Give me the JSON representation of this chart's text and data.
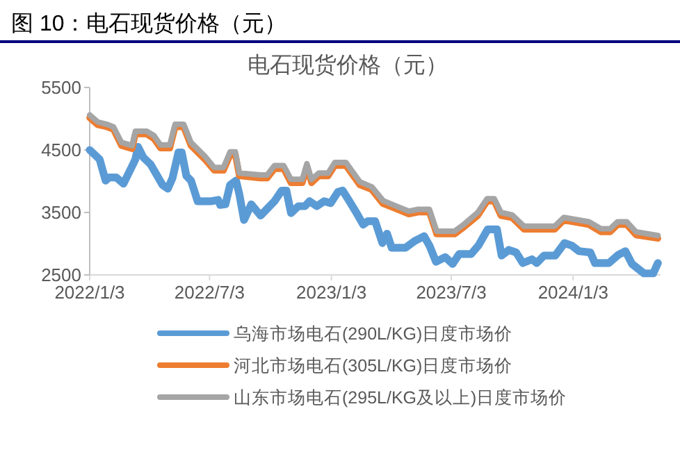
{
  "chart_data": {
    "type": "line",
    "title": "图 10：电石现货价格（元）",
    "subtitle": "电石现货价格（元）",
    "xlim": [
      "2022-01-03",
      "2024-05-14"
    ],
    "xticks": [
      {
        "value": "2022-01-03",
        "label": "2022/1/3"
      },
      {
        "value": "2022-07-03",
        "label": "2022/7/3"
      },
      {
        "value": "2023-01-03",
        "label": "2023/1/3"
      },
      {
        "value": "2023-07-03",
        "label": "2023/7/3"
      },
      {
        "value": "2024-01-03",
        "label": "2024/1/3"
      }
    ],
    "ylim": [
      2500,
      5500
    ],
    "yticks": [
      2500,
      3500,
      4500,
      5500
    ],
    "grid": false,
    "legend": "bottom",
    "marker": "none",
    "line_style": "solid",
    "series": [
      {
        "name": "乌海市场电石(290L/KG)日度市场价",
        "color": "#5b9bd5",
        "x": [
          "2022-01-03",
          "2022-01-18",
          "2022-01-27",
          "2022-02-01",
          "2022-02-12",
          "2022-02-23",
          "2022-03-08",
          "2022-03-13",
          "2022-03-17",
          "2022-03-25",
          "2022-04-05",
          "2022-04-23",
          "2022-05-01",
          "2022-05-08",
          "2022-05-17",
          "2022-05-22",
          "2022-05-29",
          "2022-06-05",
          "2022-06-15",
          "2022-07-06",
          "2022-07-16",
          "2022-07-19",
          "2022-07-27",
          "2022-08-03",
          "2022-08-12",
          "2022-08-17",
          "2022-08-24",
          "2022-09-04",
          "2022-09-18",
          "2022-10-09",
          "2022-10-20",
          "2022-10-27",
          "2022-11-03",
          "2022-11-14",
          "2022-11-24",
          "2022-12-01",
          "2022-12-12",
          "2022-12-23",
          "2023-01-02",
          "2023-01-13",
          "2023-01-20",
          "2023-01-29",
          "2023-02-10",
          "2023-02-20",
          "2023-02-27",
          "2023-03-10",
          "2023-03-21",
          "2023-03-28",
          "2023-04-04",
          "2023-04-25",
          "2023-05-09",
          "2023-05-23",
          "2023-05-31",
          "2023-06-10",
          "2023-06-24",
          "2023-07-05",
          "2023-07-15",
          "2023-08-02",
          "2023-08-13",
          "2023-08-27",
          "2023-09-10",
          "2023-09-17",
          "2023-09-28",
          "2023-10-09",
          "2023-10-19",
          "2023-11-02",
          "2023-11-09",
          "2023-11-20",
          "2023-12-07",
          "2023-12-21",
          "2024-01-01",
          "2024-01-12",
          "2024-01-29",
          "2024-02-05",
          "2024-02-26",
          "2024-03-11",
          "2024-03-22",
          "2024-04-01",
          "2024-04-19",
          "2024-05-03",
          "2024-05-10"
        ],
        "values": [
          4500,
          4350,
          4010,
          4060,
          4060,
          3960,
          4240,
          4350,
          4550,
          4380,
          4270,
          3940,
          3880,
          4050,
          4460,
          4460,
          4085,
          4010,
          3680,
          3680,
          3700,
          3620,
          3630,
          3940,
          4010,
          3790,
          3380,
          3630,
          3450,
          3680,
          3850,
          3850,
          3490,
          3600,
          3600,
          3680,
          3600,
          3680,
          3650,
          3830,
          3850,
          3700,
          3490,
          3305,
          3360,
          3360,
          3010,
          3160,
          2935,
          2935,
          3045,
          3120,
          2970,
          2710,
          2785,
          2675,
          2835,
          2835,
          2970,
          3230,
          3230,
          2810,
          2900,
          2860,
          2690,
          2750,
          2690,
          2810,
          2810,
          3010,
          2970,
          2880,
          2860,
          2690,
          2690,
          2820,
          2880,
          2675,
          2525,
          2525,
          2690
        ]
      },
      {
        "name": "河北市场电石(305L/KG)日度市场价",
        "color": "#ed7d31",
        "x": [
          "2022-01-03",
          "2022-01-15",
          "2022-01-29",
          "2022-02-08",
          "2022-02-20",
          "2022-03-08",
          "2022-03-13",
          "2022-03-30",
          "2022-04-10",
          "2022-04-20",
          "2022-05-04",
          "2022-05-12",
          "2022-05-25",
          "2022-06-05",
          "2022-06-26",
          "2022-07-10",
          "2022-07-24",
          "2022-08-03",
          "2022-08-11",
          "2022-08-17",
          "2022-09-18",
          "2022-09-28",
          "2022-10-09",
          "2022-10-23",
          "2022-11-03",
          "2022-11-20",
          "2022-11-27",
          "2022-12-04",
          "2022-12-15",
          "2022-12-29",
          "2023-01-08",
          "2023-01-25",
          "2023-02-15",
          "2023-03-05",
          "2023-03-22",
          "2023-04-09",
          "2023-04-30",
          "2023-05-14",
          "2023-05-31",
          "2023-06-11",
          "2023-07-08",
          "2023-07-22",
          "2023-08-12",
          "2023-08-26",
          "2023-09-06",
          "2023-09-16",
          "2023-10-03",
          "2023-10-21",
          "2023-12-06",
          "2023-12-20",
          "2023-12-31",
          "2024-01-27",
          "2024-02-14",
          "2024-02-28",
          "2024-03-10",
          "2024-03-24",
          "2024-04-07",
          "2024-05-10"
        ],
        "values": [
          5015,
          4905,
          4870,
          4830,
          4570,
          4520,
          4755,
          4755,
          4680,
          4530,
          4530,
          4870,
          4870,
          4570,
          4350,
          4175,
          4175,
          4420,
          4420,
          4085,
          4050,
          4050,
          4200,
          4200,
          3975,
          3975,
          4235,
          3975,
          4085,
          4085,
          4250,
          4250,
          3940,
          3865,
          3640,
          3565,
          3475,
          3505,
          3505,
          3155,
          3155,
          3265,
          3450,
          3680,
          3680,
          3450,
          3415,
          3230,
          3230,
          3380,
          3355,
          3305,
          3190,
          3190,
          3305,
          3305,
          3140,
          3085
        ]
      },
      {
        "name": "山东市场电石(295L/KG及以上)日度市场价",
        "color": "#a5a5a5",
        "x": [
          "2022-01-03",
          "2022-01-15",
          "2022-01-29",
          "2022-02-08",
          "2022-02-20",
          "2022-03-08",
          "2022-03-13",
          "2022-03-30",
          "2022-04-10",
          "2022-04-20",
          "2022-05-04",
          "2022-05-12",
          "2022-05-25",
          "2022-06-05",
          "2022-06-26",
          "2022-07-10",
          "2022-07-24",
          "2022-08-03",
          "2022-08-11",
          "2022-08-17",
          "2022-09-18",
          "2022-09-28",
          "2022-10-09",
          "2022-10-23",
          "2022-11-03",
          "2022-11-20",
          "2022-11-27",
          "2022-12-04",
          "2022-12-15",
          "2022-12-29",
          "2023-01-08",
          "2023-01-25",
          "2023-02-15",
          "2023-03-05",
          "2023-03-22",
          "2023-04-09",
          "2023-04-30",
          "2023-05-14",
          "2023-05-31",
          "2023-06-11",
          "2023-07-08",
          "2023-07-22",
          "2023-08-12",
          "2023-08-26",
          "2023-09-06",
          "2023-09-16",
          "2023-10-03",
          "2023-10-21",
          "2023-12-06",
          "2023-12-20",
          "2023-12-31",
          "2024-01-27",
          "2024-02-14",
          "2024-02-28",
          "2024-03-10",
          "2024-03-24",
          "2024-04-07",
          "2024-05-10"
        ],
        "values": [
          5060,
          4950,
          4910,
          4870,
          4620,
          4570,
          4800,
          4800,
          4730,
          4580,
          4580,
          4910,
          4910,
          4620,
          4400,
          4220,
          4220,
          4470,
          4470,
          4130,
          4100,
          4100,
          4250,
          4250,
          4030,
          4030,
          4280,
          4030,
          4130,
          4130,
          4300,
          4300,
          3990,
          3910,
          3690,
          3610,
          3520,
          3550,
          3550,
          3200,
          3200,
          3310,
          3500,
          3720,
          3720,
          3500,
          3460,
          3280,
          3280,
          3420,
          3400,
          3350,
          3240,
          3240,
          3350,
          3350,
          3190,
          3130
        ]
      }
    ]
  }
}
